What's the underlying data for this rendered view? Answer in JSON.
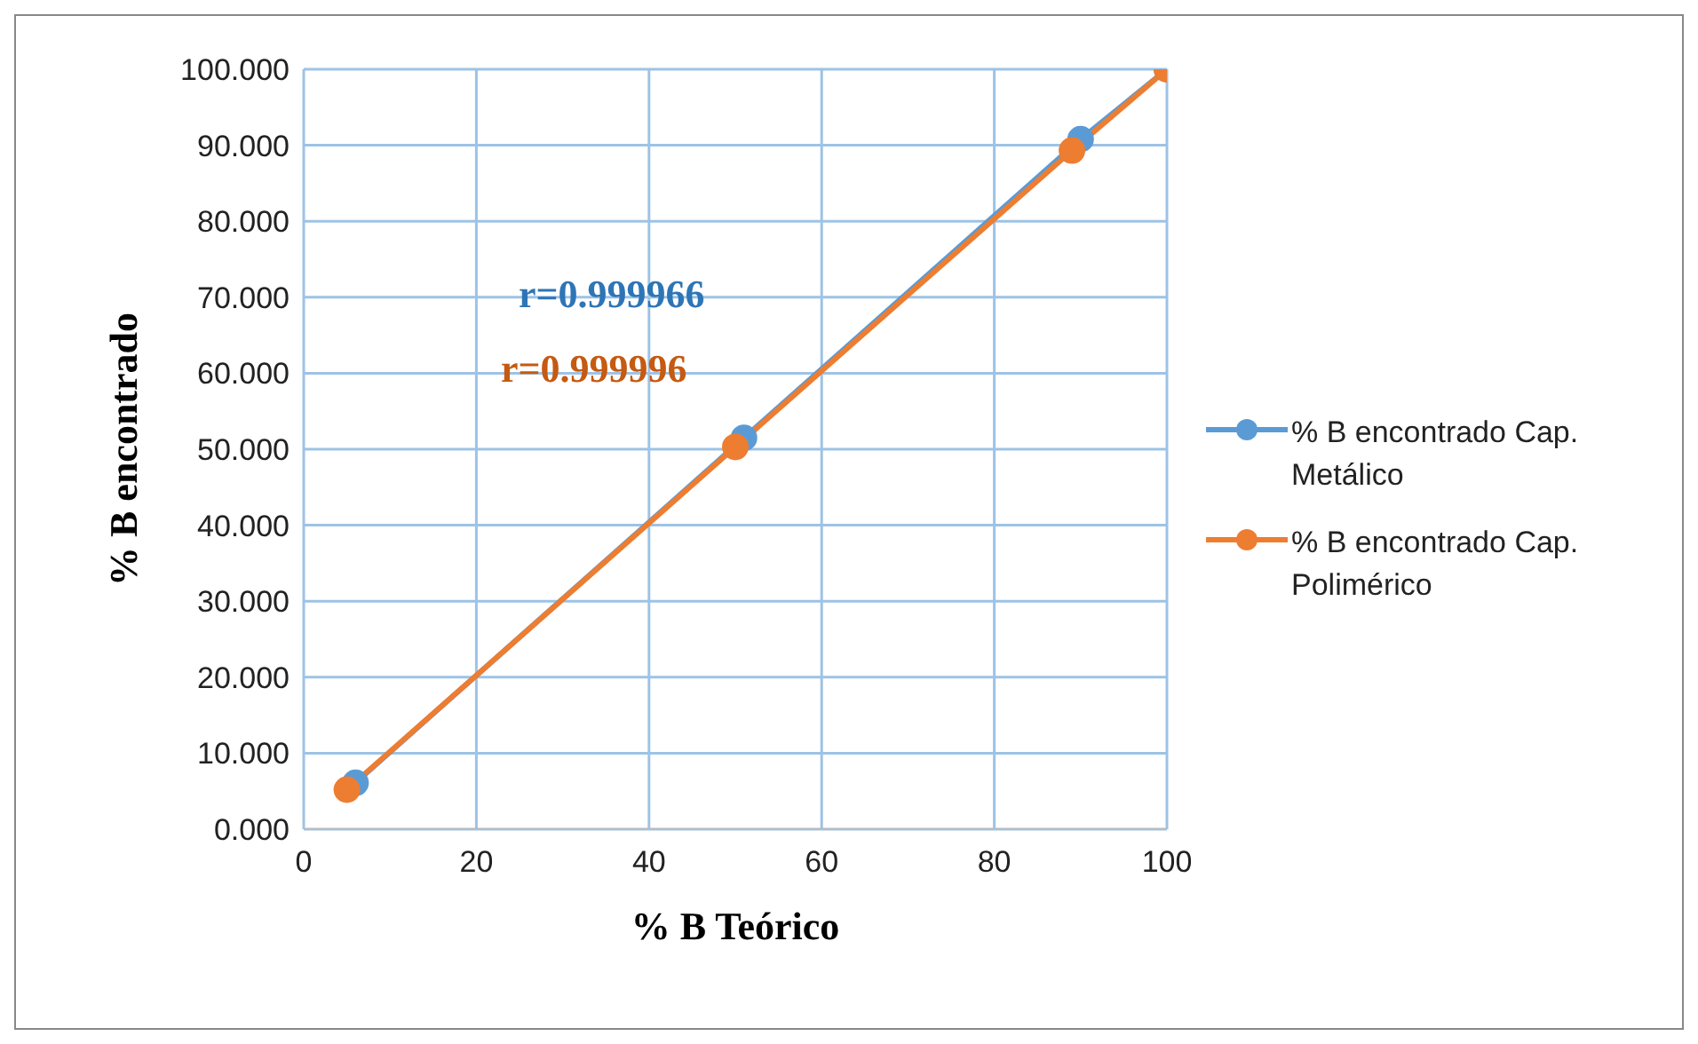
{
  "chart_data": {
    "type": "line",
    "xlabel": "% B Teórico",
    "ylabel": "% B encontrado",
    "xlim": [
      0,
      100
    ],
    "xticks": [
      0,
      20,
      40,
      60,
      80,
      100
    ],
    "ylim": [
      0,
      100
    ],
    "yticks": [
      {
        "value": 0,
        "label": "0.000"
      },
      {
        "value": 10,
        "label": "10.000"
      },
      {
        "value": 20,
        "label": "20.000"
      },
      {
        "value": 30,
        "label": "30.000"
      },
      {
        "value": 40,
        "label": "40.000"
      },
      {
        "value": 50,
        "label": "50.000"
      },
      {
        "value": 60,
        "label": "60.000"
      },
      {
        "value": 70,
        "label": "70.000"
      },
      {
        "value": 80,
        "label": "80.000"
      },
      {
        "value": 90,
        "label": "90.000"
      },
      {
        "value": 100,
        "label": "100.000"
      }
    ],
    "grid": true,
    "legend": "right",
    "marker": "circle",
    "line_style": "solid",
    "series": [
      {
        "name": "% B encontrado Cap. Metálico",
        "color": "#5b9bd5",
        "x": [
          6,
          51,
          90,
          100
        ],
        "values": [
          6.1,
          51.5,
          90.8,
          100
        ]
      },
      {
        "name": "% B encontrado Cap. Polimérico",
        "color": "#ed7d31",
        "x": [
          5,
          50,
          89,
          100
        ],
        "values": [
          5.2,
          50.3,
          89.3,
          100
        ]
      }
    ],
    "annotations": [
      "r=0.999966",
      "r=0.999996"
    ]
  }
}
